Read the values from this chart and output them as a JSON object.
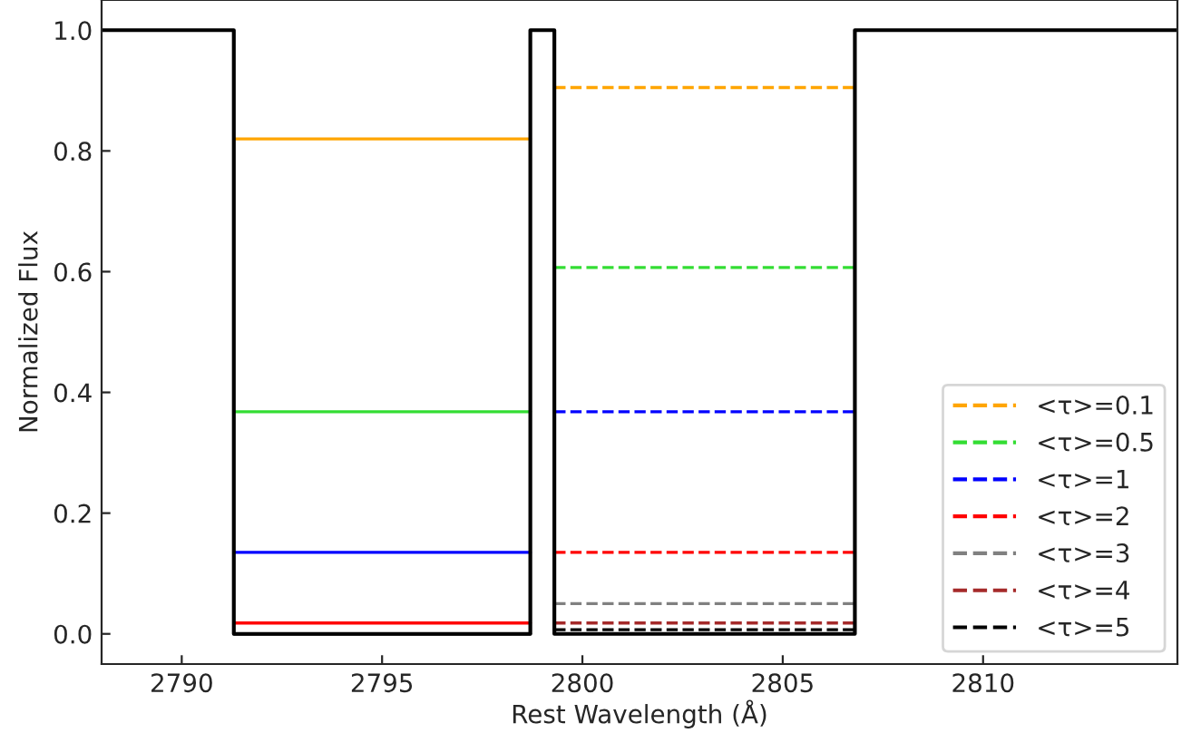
{
  "chart_data": {
    "type": "line",
    "xlabel": "Rest Wavelength (Å)",
    "ylabel": "Normalized Flux",
    "xlim": [
      2788,
      2814.85
    ],
    "ylim": [
      -0.05,
      1.05
    ],
    "xticks": [
      2790,
      2795,
      2800,
      2805,
      2810
    ],
    "yticks": [
      {
        "value": 0,
        "label": "0.0"
      },
      {
        "value": 0.2,
        "label": "0.2"
      },
      {
        "value": 0.4,
        "label": "0.4"
      },
      {
        "value": 0.6,
        "label": "0.6"
      },
      {
        "value": 0.8,
        "label": "0.8"
      },
      {
        "value": 1,
        "label": "1.0"
      }
    ],
    "grid": false,
    "legend": "bottom right",
    "marker": "none",
    "series": [
      {
        "color": "#ffa500",
        "line_style": "solid",
        "x": [
          2791.3,
          2798.7
        ],
        "values": [
          0.82,
          0.82
        ]
      },
      {
        "color": "#33dd33",
        "line_style": "solid",
        "x": [
          2791.3,
          2798.7
        ],
        "values": [
          0.368,
          0.368
        ]
      },
      {
        "color": "#0000ff",
        "line_style": "solid",
        "x": [
          2791.3,
          2798.7
        ],
        "values": [
          0.135,
          0.135
        ]
      },
      {
        "color": "#ff0000",
        "line_style": "solid",
        "x": [
          2791.3,
          2798.7
        ],
        "values": [
          0.018,
          0.018
        ]
      },
      {
        "color": "#000000",
        "line_style": "solid",
        "x": [
          2791.3,
          2798.7
        ],
        "values": [
          0,
          0
        ]
      },
      {
        "name": "<τ>=0.1",
        "color": "#ffa500",
        "line_style": "dashed",
        "x": [
          2799.3,
          2806.8
        ],
        "values": [
          0.905,
          0.905
        ]
      },
      {
        "name": "<τ>=0.5",
        "color": "#33dd33",
        "line_style": "dashed",
        "x": [
          2799.3,
          2806.8
        ],
        "values": [
          0.607,
          0.607
        ]
      },
      {
        "name": "<τ>=1",
        "color": "#0000ff",
        "line_style": "dashed",
        "x": [
          2799.3,
          2806.8
        ],
        "values": [
          0.368,
          0.368
        ]
      },
      {
        "name": "<τ>=2",
        "color": "#ff0000",
        "line_style": "dashed",
        "x": [
          2799.3,
          2806.8
        ],
        "values": [
          0.135,
          0.135
        ]
      },
      {
        "name": "<τ>=3",
        "color": "#808080",
        "line_style": "dashed",
        "x": [
          2799.3,
          2806.8
        ],
        "values": [
          0.05,
          0.05
        ]
      },
      {
        "name": "<τ>=4",
        "color": "#a52a2a",
        "line_style": "dashed",
        "x": [
          2799.3,
          2806.8
        ],
        "values": [
          0.018,
          0.018
        ]
      },
      {
        "name": "<τ>=5",
        "color": "#000000",
        "line_style": "dashed",
        "x": [
          2799.3,
          2806.8
        ],
        "values": [
          0.007,
          0.007
        ]
      },
      {
        "color": "#000000",
        "line_style": "solid",
        "x": [
          2788,
          2791.3,
          2791.3,
          2798.7,
          2798.7,
          2799.3,
          2799.3,
          2806.8,
          2806.8,
          2814.85
        ],
        "values": [
          1,
          1,
          0,
          0,
          1,
          1,
          0,
          0,
          1,
          1
        ]
      }
    ]
  }
}
